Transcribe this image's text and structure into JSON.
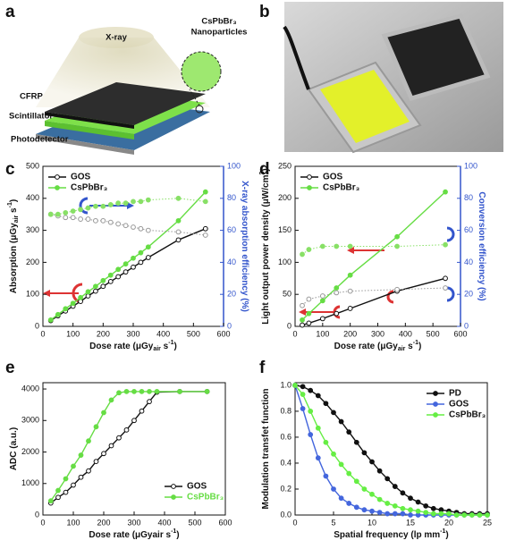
{
  "figure": {
    "panel_a": {
      "panel": "a",
      "xray": "X-ray",
      "particles": [
        "CsPbBr₃",
        "Nanoparticles"
      ],
      "layers": [
        "CFRP",
        "Scintillator",
        "Photodetector"
      ]
    },
    "panel_b": {
      "panel": "b"
    }
  },
  "chart_data": [
    {
      "type": "line",
      "panel": "c",
      "x_label": [
        "Dose rate (μGy",
        "air",
        " s",
        "-1",
        ")"
      ],
      "y_label": [
        "Absorption (μGy",
        "air",
        " s",
        "-1",
        ")"
      ],
      "y2_label": [
        "X-ray absorption efficiency (%)"
      ],
      "y2_color": "#3355cc",
      "x": [
        26,
        50,
        75,
        100,
        125,
        150,
        175,
        200,
        225,
        250,
        275,
        300,
        325,
        350,
        450,
        540
      ],
      "series": [
        {
          "name": "GOS",
          "color": "#111111",
          "marker": "open",
          "values": [
            18,
            33,
            48,
            63,
            78,
            95,
            110,
            125,
            140,
            155,
            170,
            185,
            200,
            215,
            270,
            305
          ]
        },
        {
          "name": "CsPbBr₃",
          "color": "#66dd44",
          "marker": "filled",
          "values": [
            20,
            37,
            55,
            72,
            90,
            108,
            125,
            143,
            160,
            178,
            195,
            213,
            230,
            248,
            330,
            420
          ]
        },
        {
          "color": "#999999",
          "marker": "open",
          "line_style": "dotted",
          "axis": "y2",
          "values": [
            70,
            69,
            68,
            68,
            67,
            67,
            66,
            66,
            65,
            64,
            63,
            62,
            61,
            60,
            59,
            57
          ]
        },
        {
          "color": "#88e066",
          "marker": "filled",
          "line_style": "dotted",
          "axis": "y2",
          "values": [
            70,
            70,
            71,
            72,
            73,
            74,
            75,
            75,
            76,
            77,
            77,
            78,
            78,
            79,
            80,
            78
          ]
        }
      ],
      "xlim": [
        0,
        600
      ],
      "xticks": [
        0,
        100,
        200,
        300,
        400,
        500,
        600
      ],
      "ylim": [
        0,
        500
      ],
      "yticks": [
        0,
        100,
        200,
        300,
        400,
        500
      ],
      "y2lim": [
        0,
        100
      ],
      "y2ticks": [
        0,
        20,
        40,
        60,
        80,
        100
      ],
      "legend": "upper left"
    },
    {
      "type": "line",
      "panel": "d",
      "x_label": [
        "Dose rate (μGy",
        "air",
        " s",
        "-1",
        ")"
      ],
      "y_label": [
        "Light output power density (μW/cm",
        "2",
        ")"
      ],
      "y2_label": [
        "Conversion efficiency (%)"
      ],
      "y2_color": "#3355cc",
      "x": [
        26,
        50,
        100,
        150,
        200,
        370,
        545
      ],
      "series": [
        {
          "name": "GOS",
          "color": "#111111",
          "marker": "open",
          "values": [
            2,
            5,
            12,
            20,
            28,
            55,
            75
          ]
        },
        {
          "name": "CsPbBr₃",
          "color": "#66dd44",
          "marker": "filled",
          "values": [
            10,
            20,
            40,
            60,
            80,
            140,
            210
          ]
        },
        {
          "color": "#999999",
          "marker": "open",
          "line_style": "dotted",
          "axis": "y2",
          "values": [
            13,
            17,
            19,
            21,
            22,
            23,
            24
          ]
        },
        {
          "color": "#88e066",
          "marker": "filled",
          "line_style": "dotted",
          "axis": "y2",
          "values": [
            45,
            48,
            50,
            50,
            50,
            50,
            51
          ]
        }
      ],
      "xlim": [
        0,
        600
      ],
      "xticks": [
        0,
        100,
        200,
        300,
        400,
        500,
        600
      ],
      "ylim": [
        0,
        250
      ],
      "yticks": [
        0,
        50,
        100,
        150,
        200,
        250
      ],
      "y2lim": [
        0,
        100
      ],
      "y2ticks": [
        0,
        20,
        40,
        60,
        80,
        100
      ],
      "legend": "upper left"
    },
    {
      "type": "line",
      "panel": "e",
      "x_label": [
        "Dose rate (μGyair s",
        "-1",
        ")"
      ],
      "y_label": [
        "ADC (a.u.)"
      ],
      "x": [
        26,
        50,
        75,
        100,
        125,
        150,
        175,
        200,
        225,
        250,
        275,
        300,
        325,
        350,
        375,
        450,
        540
      ],
      "series": [
        {
          "name": "GOS",
          "color": "#111111",
          "marker": "open",
          "values": [
            380,
            560,
            720,
            950,
            1200,
            1400,
            1700,
            1950,
            2200,
            2450,
            2700,
            3000,
            3300,
            3600,
            3900,
            3920,
            3920
          ]
        },
        {
          "name": "CsPbBr₃",
          "color": "#66dd44",
          "marker": "filled",
          "values": [
            450,
            780,
            1150,
            1550,
            1900,
            2350,
            2800,
            3250,
            3650,
            3880,
            3920,
            3920,
            3920,
            3920,
            3920,
            3920,
            3920
          ]
        }
      ],
      "xlim": [
        0,
        600
      ],
      "xticks": [
        0,
        100,
        200,
        300,
        400,
        500,
        600
      ],
      "ylim": [
        0,
        4200
      ],
      "yticks": [
        0,
        1000,
        2000,
        3000,
        4000
      ],
      "legend": "lower right"
    },
    {
      "type": "line",
      "panel": "f",
      "x_label": [
        "Spatial frequency (lp mm",
        "-1",
        ")"
      ],
      "y_label": [
        "Modulation transfet function"
      ],
      "x": [
        0,
        1,
        2,
        3,
        4,
        5,
        6,
        7,
        8,
        9,
        10,
        11,
        12,
        13,
        14,
        15,
        16,
        17,
        18,
        19,
        20,
        21,
        22,
        23,
        24,
        25
      ],
      "series": [
        {
          "name": "PD",
          "color": "#111111",
          "marker": "filled",
          "values": [
            1.0,
            0.99,
            0.96,
            0.92,
            0.86,
            0.79,
            0.72,
            0.64,
            0.56,
            0.48,
            0.41,
            0.34,
            0.28,
            0.22,
            0.17,
            0.13,
            0.1,
            0.07,
            0.05,
            0.04,
            0.03,
            0.02,
            0.01,
            0.01,
            0.01,
            0.01
          ]
        },
        {
          "name": "GOS",
          "color": "#4466dd",
          "marker": "filled",
          "values": [
            1.0,
            0.82,
            0.62,
            0.44,
            0.3,
            0.2,
            0.13,
            0.09,
            0.06,
            0.04,
            0.03,
            0.02,
            0.01,
            0.01,
            0.01,
            0,
            0,
            0,
            0,
            0,
            0,
            0,
            0,
            0,
            0,
            0
          ]
        },
        {
          "name": "CsPbBr₃",
          "color": "#66ee44",
          "marker": "filled",
          "values": [
            1.0,
            0.93,
            0.8,
            0.67,
            0.56,
            0.47,
            0.39,
            0.32,
            0.26,
            0.2,
            0.16,
            0.12,
            0.09,
            0.07,
            0.05,
            0.04,
            0.03,
            0.02,
            0.01,
            0.01,
            0.01,
            0,
            0,
            0,
            0,
            0
          ]
        }
      ],
      "xlim": [
        0,
        25
      ],
      "xticks": [
        0,
        5,
        10,
        15,
        20,
        25
      ],
      "ylim": [
        0,
        1.02
      ],
      "yticks": [
        {
          "value": 0,
          "label": "0.0"
        },
        0.2,
        0.4,
        0.6,
        0.8,
        {
          "value": 1,
          "label": "1.0"
        }
      ],
      "legend": "upper right"
    }
  ]
}
